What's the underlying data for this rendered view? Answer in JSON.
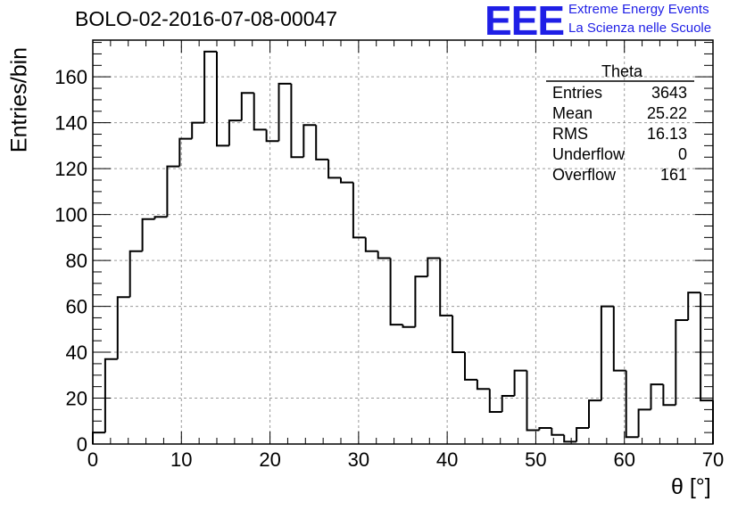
{
  "title": "BOLO-02-2016-07-08-00047",
  "logo": {
    "mark": "EEE",
    "line1": "Extreme Energy Events",
    "line2": "La Scienza nelle Scuole",
    "color": "#1f1fe6"
  },
  "stats_box": {
    "title": "Theta",
    "rows": [
      {
        "label": "Entries",
        "value": "3643"
      },
      {
        "label": "Mean",
        "value": "25.22"
      },
      {
        "label": "RMS",
        "value": "16.13"
      },
      {
        "label": "Underflow",
        "value": "0"
      },
      {
        "label": "Overflow",
        "value": "161"
      }
    ]
  },
  "chart_data": {
    "type": "bar",
    "style": "step-histogram",
    "xlabel": "θ [°]",
    "ylabel": "Entries/bin",
    "xlim": [
      0,
      70
    ],
    "ylim": [
      0,
      176
    ],
    "grid": true,
    "bin_width": 1.4,
    "x_ticks": [
      0,
      10,
      20,
      30,
      40,
      50,
      60,
      70
    ],
    "y_ticks": [
      0,
      20,
      40,
      60,
      80,
      100,
      120,
      140,
      160
    ],
    "values": [
      5,
      37,
      64,
      84,
      98,
      99,
      121,
      133,
      140,
      171,
      130,
      141,
      153,
      137,
      132,
      157,
      125,
      139,
      124,
      116,
      114,
      90,
      84,
      81,
      52,
      51,
      73,
      81,
      56,
      40,
      28,
      24,
      14,
      21,
      32,
      6,
      7,
      4,
      1,
      7,
      19,
      60,
      32,
      3,
      15,
      26,
      17,
      54,
      66,
      19
    ]
  }
}
